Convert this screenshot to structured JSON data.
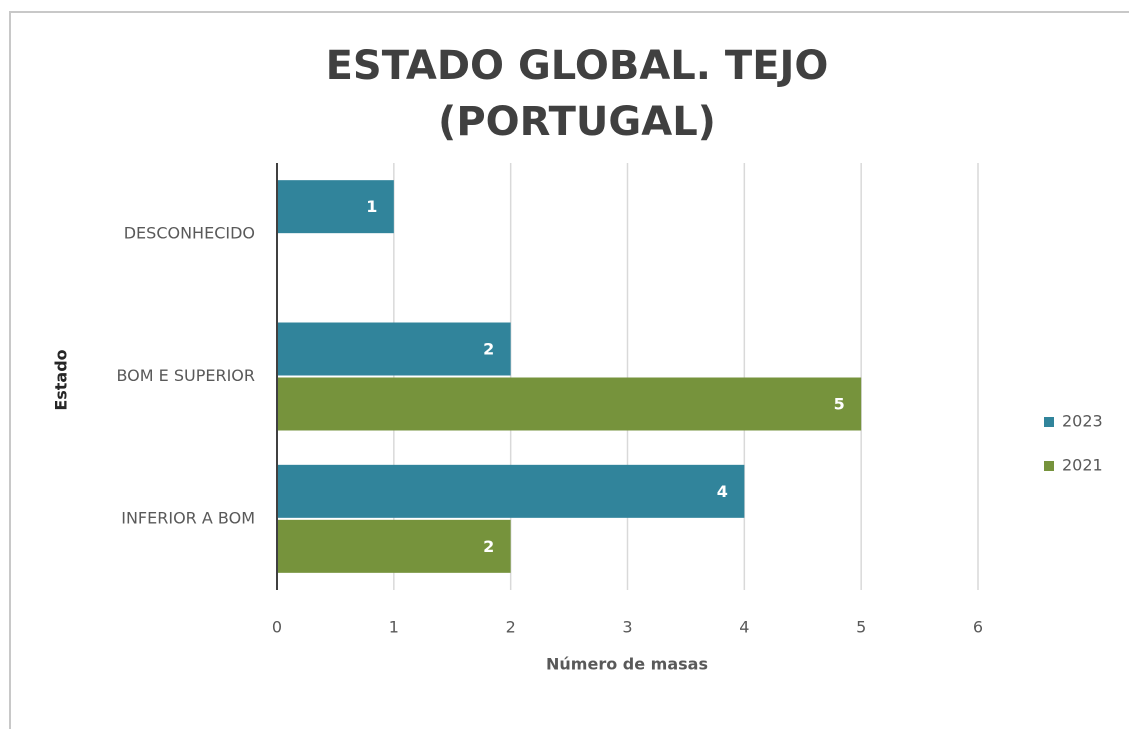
{
  "chart_data": {
    "type": "bar",
    "orientation": "horizontal",
    "title": [
      "ESTADO GLOBAL. TEJO",
      "(PORTUGAL)"
    ],
    "x_label": "Número de masas",
    "y_label": "Estado",
    "categories": [
      "DESCONHECIDO",
      "BOM E SUPERIOR",
      "INFERIOR A BOM"
    ],
    "series": [
      {
        "name": "2023",
        "color": "#31849b",
        "values": [
          1,
          2,
          4
        ]
      },
      {
        "name": "2021",
        "color": "#76933c",
        "values": [
          null,
          5,
          2
        ]
      }
    ],
    "xlim": [
      0,
      6
    ],
    "xticks": [
      0,
      1,
      2,
      3,
      4,
      5,
      6
    ],
    "grid": true,
    "legend": "right"
  }
}
